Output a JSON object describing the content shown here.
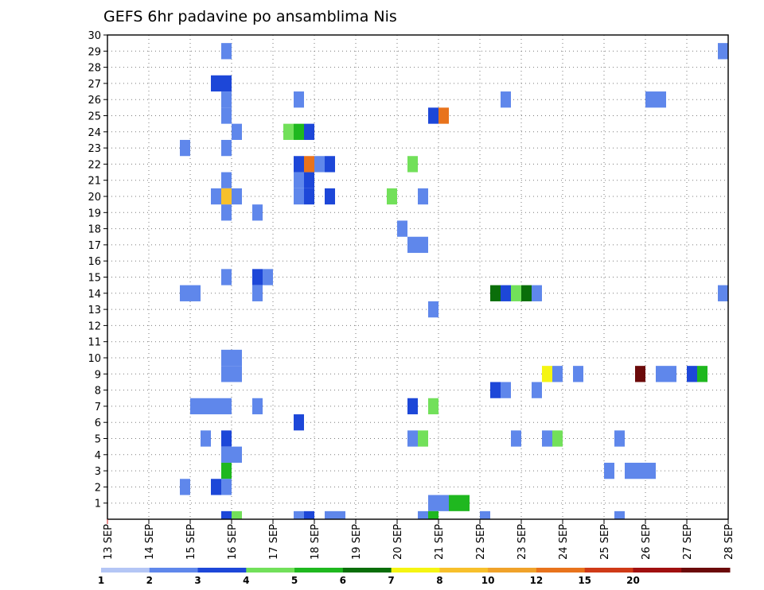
{
  "chart_data": {
    "type": "heatmap",
    "title": "GEFS 6hr padavine po ansamblima Nis",
    "xlabel": "",
    "ylabel": "",
    "x_ticks": [
      "13 SEP",
      "14 SEP",
      "15 SEP",
      "16 SEP",
      "17 SEP",
      "18 SEP",
      "19 SEP",
      "20 SEP",
      "21 SEP",
      "22 SEP",
      "23 SEP",
      "24 SEP",
      "25 SEP",
      "26 SEP",
      "27 SEP",
      "28 SEP"
    ],
    "y_ticks": [
      "1",
      "2",
      "3",
      "4",
      "5",
      "6",
      "7",
      "8",
      "9",
      "10",
      "11",
      "12",
      "13",
      "14",
      "15",
      "16",
      "17",
      "18",
      "19",
      "20",
      "21",
      "22",
      "23",
      "24",
      "25",
      "26",
      "27",
      "28",
      "29",
      "30"
    ],
    "xlim": [
      0,
      60
    ],
    "ylim": [
      0,
      30
    ],
    "grid": true,
    "colorbar": {
      "labels": [
        "1",
        "2",
        "3",
        "4",
        "5",
        "6",
        "7",
        "8",
        "10",
        "12",
        "15",
        "20"
      ],
      "colors": [
        "#b4c6f5",
        "#5f87eb",
        "#1d47d8",
        "#72e05a",
        "#1fb81f",
        "#0a6e0a",
        "#f5f512",
        "#f7c02b",
        "#f0a22a",
        "#e8731c",
        "#cf3a17",
        "#a01010",
        "#6b0a0a"
      ]
    },
    "cells": [
      [
        11.5,
        29,
        1
      ],
      [
        59.5,
        29,
        1
      ],
      [
        10.5,
        27,
        2
      ],
      [
        11.5,
        27,
        2
      ],
      [
        11.5,
        26,
        1
      ],
      [
        18.5,
        26,
        1
      ],
      [
        38.5,
        26,
        1
      ],
      [
        52.5,
        26,
        1
      ],
      [
        53.5,
        26,
        1
      ],
      [
        11.5,
        25,
        1
      ],
      [
        31.5,
        25,
        2
      ],
      [
        32.5,
        25,
        9
      ],
      [
        12.5,
        24,
        1
      ],
      [
        17.5,
        24,
        3
      ],
      [
        18.5,
        24,
        4
      ],
      [
        19.5,
        24,
        2
      ],
      [
        7.5,
        23,
        1
      ],
      [
        11.5,
        23,
        1
      ],
      [
        18.5,
        22,
        2
      ],
      [
        19.5,
        22,
        9
      ],
      [
        20.5,
        22,
        1
      ],
      [
        21.5,
        22,
        2
      ],
      [
        29.5,
        22,
        3
      ],
      [
        11.5,
        21,
        1
      ],
      [
        18.5,
        21,
        1
      ],
      [
        19.5,
        21,
        2
      ],
      [
        10.5,
        20,
        1
      ],
      [
        11.5,
        20,
        7
      ],
      [
        12.5,
        20,
        1
      ],
      [
        18.5,
        20,
        1
      ],
      [
        19.5,
        20,
        2
      ],
      [
        21.5,
        20,
        2
      ],
      [
        27.5,
        20,
        3
      ],
      [
        30.5,
        20,
        1
      ],
      [
        11.5,
        19,
        1
      ],
      [
        14.5,
        19,
        1
      ],
      [
        28.5,
        18,
        1
      ],
      [
        29.5,
        17,
        1
      ],
      [
        30.5,
        17,
        1
      ],
      [
        11.5,
        15,
        1
      ],
      [
        14.5,
        15,
        2
      ],
      [
        15.5,
        15,
        1
      ],
      [
        7.5,
        14,
        1
      ],
      [
        8.5,
        14,
        1
      ],
      [
        14.5,
        14,
        1
      ],
      [
        37.5,
        14,
        5
      ],
      [
        38.5,
        14,
        2
      ],
      [
        39.5,
        14,
        3
      ],
      [
        40.5,
        14,
        5
      ],
      [
        41.5,
        14,
        1
      ],
      [
        59.5,
        14,
        1
      ],
      [
        31.5,
        13,
        1
      ],
      [
        11.5,
        10,
        1
      ],
      [
        12.5,
        10,
        1
      ],
      [
        11.5,
        9,
        1
      ],
      [
        12.5,
        9,
        1
      ],
      [
        42.5,
        9,
        6
      ],
      [
        43.5,
        9,
        1
      ],
      [
        45.5,
        9,
        1
      ],
      [
        51.5,
        9,
        12
      ],
      [
        53.5,
        9,
        1
      ],
      [
        54.5,
        9,
        1
      ],
      [
        56.5,
        9,
        2
      ],
      [
        57.5,
        9,
        4
      ],
      [
        37.5,
        8,
        2
      ],
      [
        38.5,
        8,
        1
      ],
      [
        41.5,
        8,
        1
      ],
      [
        8.5,
        7,
        1
      ],
      [
        9.5,
        7,
        1
      ],
      [
        10.5,
        7,
        1
      ],
      [
        11.5,
        7,
        1
      ],
      [
        14.5,
        7,
        1
      ],
      [
        29.5,
        7,
        2
      ],
      [
        31.5,
        7,
        3
      ],
      [
        18.5,
        6,
        2
      ],
      [
        9.5,
        5,
        1
      ],
      [
        11.5,
        5,
        2
      ],
      [
        29.5,
        5,
        1
      ],
      [
        30.5,
        5,
        3
      ],
      [
        39.5,
        5,
        1
      ],
      [
        42.5,
        5,
        1
      ],
      [
        43.5,
        5,
        3
      ],
      [
        49.5,
        5,
        1
      ],
      [
        11.5,
        4,
        1
      ],
      [
        12.5,
        4,
        1
      ],
      [
        11.5,
        3,
        4
      ],
      [
        48.5,
        3,
        1
      ],
      [
        50.5,
        3,
        1
      ],
      [
        51.5,
        3,
        1
      ],
      [
        52.5,
        3,
        1
      ],
      [
        7.5,
        2,
        1
      ],
      [
        10.5,
        2,
        2
      ],
      [
        11.5,
        2,
        1
      ],
      [
        31.5,
        1,
        1
      ],
      [
        32.5,
        1,
        1
      ],
      [
        33.5,
        1,
        4
      ],
      [
        34.5,
        1,
        4
      ],
      [
        11.5,
        0,
        2
      ],
      [
        12.5,
        0,
        3
      ],
      [
        18.5,
        0,
        1
      ],
      [
        19.5,
        0,
        2
      ],
      [
        21.5,
        0,
        1
      ],
      [
        22.5,
        0,
        1
      ],
      [
        30.5,
        0,
        1
      ],
      [
        31.5,
        0,
        4
      ],
      [
        36.5,
        0,
        1
      ],
      [
        49.5,
        0,
        1
      ]
    ]
  }
}
